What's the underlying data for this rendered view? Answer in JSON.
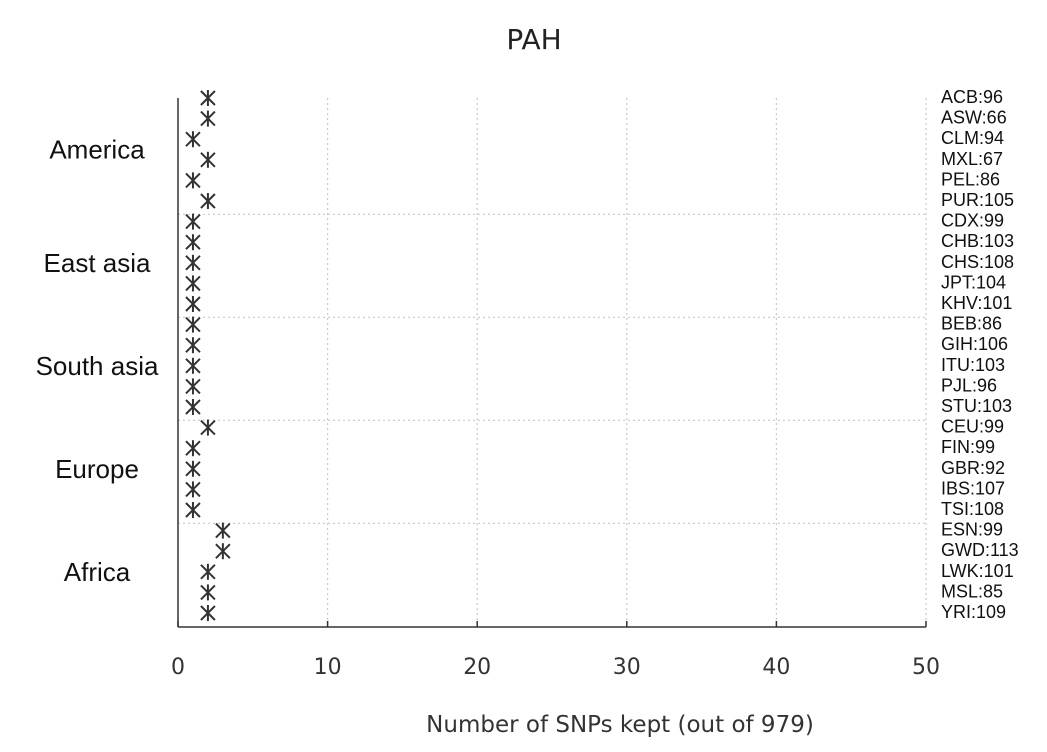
{
  "chart_data": {
    "type": "scatter",
    "title": "PAH",
    "xlabel": "Number of SNPs kept (out of 979)",
    "xlim": [
      0,
      50
    ],
    "xticks": [
      "0",
      "10",
      "20",
      "30",
      "40",
      "50"
    ],
    "grid": "vertical dotted at x ticks; horizontal dotted between region groups",
    "marker": "asterisk",
    "groups": [
      {
        "name": "America",
        "populations": [
          {
            "label": "ACB:96",
            "value": 2
          },
          {
            "label": "ASW:66",
            "value": 2
          },
          {
            "label": "CLM:94",
            "value": 1
          },
          {
            "label": "MXL:67",
            "value": 2
          },
          {
            "label": "PEL:86",
            "value": 1
          },
          {
            "label": "PUR:105",
            "value": 2
          }
        ]
      },
      {
        "name": "East asia",
        "populations": [
          {
            "label": "CDX:99",
            "value": 1
          },
          {
            "label": "CHB:103",
            "value": 1
          },
          {
            "label": "CHS:108",
            "value": 1
          },
          {
            "label": "JPT:104",
            "value": 1
          },
          {
            "label": "KHV:101",
            "value": 1
          }
        ]
      },
      {
        "name": "South asia",
        "populations": [
          {
            "label": "BEB:86",
            "value": 1
          },
          {
            "label": "GIH:106",
            "value": 1
          },
          {
            "label": "ITU:103",
            "value": 1
          },
          {
            "label": "PJL:96",
            "value": 1
          },
          {
            "label": "STU:103",
            "value": 1
          }
        ]
      },
      {
        "name": "Europe",
        "populations": [
          {
            "label": "CEU:99",
            "value": 2
          },
          {
            "label": "FIN:99",
            "value": 1
          },
          {
            "label": "GBR:92",
            "value": 1
          },
          {
            "label": "IBS:107",
            "value": 1
          },
          {
            "label": "TSI:108",
            "value": 1
          }
        ]
      },
      {
        "name": "Africa",
        "populations": [
          {
            "label": "ESN:99",
            "value": 3
          },
          {
            "label": "GWD:113",
            "value": 3
          },
          {
            "label": "LWK:101",
            "value": 2
          },
          {
            "label": "MSL:85",
            "value": 2
          },
          {
            "label": "YRI:109",
            "value": 2
          }
        ]
      }
    ]
  }
}
